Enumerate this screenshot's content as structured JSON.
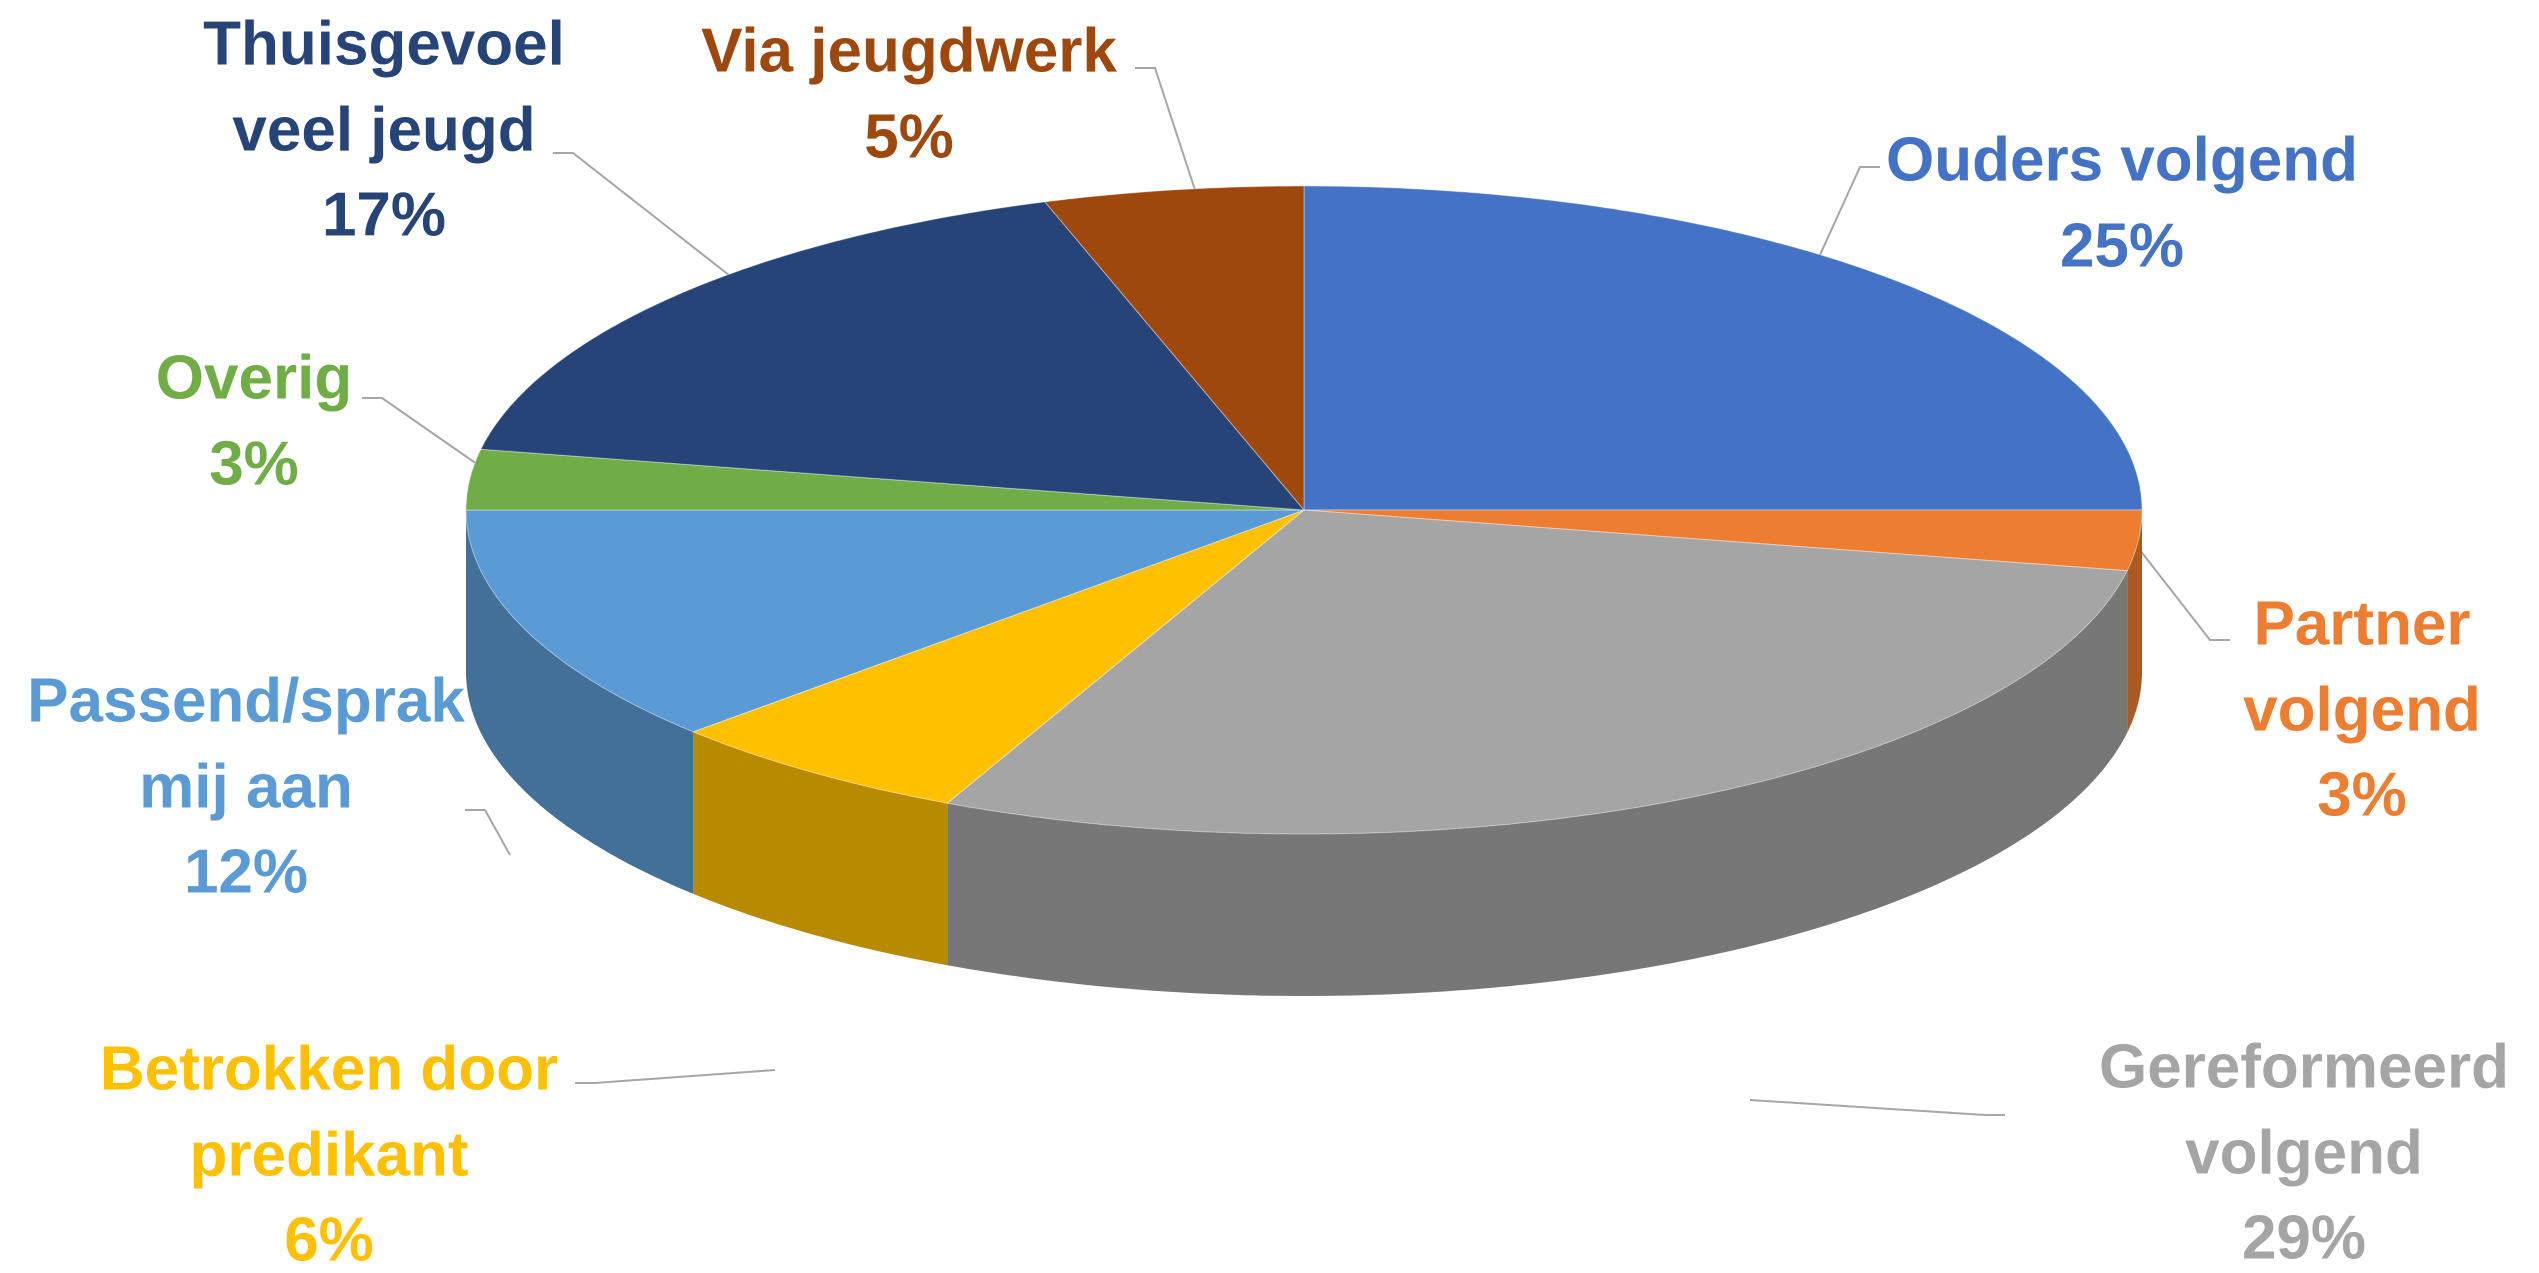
{
  "chart_data": {
    "type": "pie3d",
    "categories": [
      "Ouders volgend",
      "Partner volgend",
      "Gereformeerd volgend",
      "Betrokken door predikant",
      "Passend/sprak mij aan",
      "Overig",
      "Thuisgevoel veel jeugd",
      "Via jeugdwerk"
    ],
    "values": [
      25,
      3,
      29,
      6,
      12,
      3,
      17,
      5
    ],
    "value_labels": [
      "25%",
      "3%",
      "29%",
      "6%",
      "12%",
      "3%",
      "17%",
      "5%"
    ],
    "colors": [
      "#4472C4",
      "#ED7D31",
      "#A5A5A5",
      "#FFC000",
      "#5B9BD5",
      "#70AD47",
      "#264478",
      "#9E480E"
    ]
  }
}
